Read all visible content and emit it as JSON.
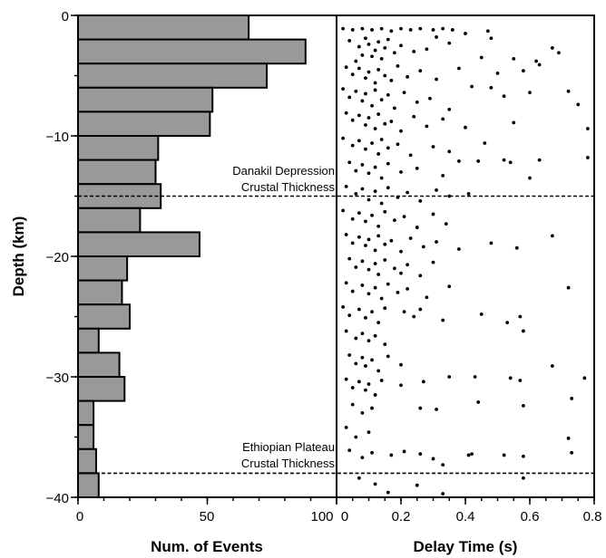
{
  "chart_data": [
    {
      "type": "bar",
      "orientation": "horizontal",
      "xlabel": "Num. of Events",
      "ylabel": "Depth (km)",
      "xlim": [
        0,
        100
      ],
      "ylim": [
        -40,
        0
      ],
      "xticks": [
        "0",
        "50",
        "100"
      ],
      "yticks": [
        "0",
        "−10",
        "−20",
        "−30",
        "−40"
      ],
      "bin_width_km": 2,
      "bins": [
        {
          "top": 0,
          "bottom": -2,
          "value": 66
        },
        {
          "top": -2,
          "bottom": -4,
          "value": 88
        },
        {
          "top": -4,
          "bottom": -6,
          "value": 73
        },
        {
          "top": -6,
          "bottom": -8,
          "value": 52
        },
        {
          "top": -8,
          "bottom": -10,
          "value": 51
        },
        {
          "top": -10,
          "bottom": -12,
          "value": 31
        },
        {
          "top": -12,
          "bottom": -14,
          "value": 30
        },
        {
          "top": -14,
          "bottom": -16,
          "value": 32
        },
        {
          "top": -16,
          "bottom": -18,
          "value": 24
        },
        {
          "top": -18,
          "bottom": -20,
          "value": 47
        },
        {
          "top": -20,
          "bottom": -22,
          "value": 19
        },
        {
          "top": -22,
          "bottom": -24,
          "value": 17
        },
        {
          "top": -24,
          "bottom": -26,
          "value": 20
        },
        {
          "top": -26,
          "bottom": -28,
          "value": 8
        },
        {
          "top": -28,
          "bottom": -30,
          "value": 16
        },
        {
          "top": -30,
          "bottom": -32,
          "value": 18
        },
        {
          "top": -32,
          "bottom": -34,
          "value": 6
        },
        {
          "top": -34,
          "bottom": -36,
          "value": 6
        },
        {
          "top": -36,
          "bottom": -38,
          "value": 7
        },
        {
          "top": -38,
          "bottom": -40,
          "value": 8
        }
      ],
      "bar_color": "#999999"
    },
    {
      "type": "scatter",
      "xlabel": "Delay Time (s)",
      "xlim": [
        0,
        0.8
      ],
      "ylim": [
        -40,
        0
      ],
      "xticks": [
        "0",
        "0.2",
        "0.4",
        "0.6",
        "0.8"
      ],
      "points": [
        [
          0.02,
          -1.1
        ],
        [
          0.05,
          -1.2
        ],
        [
          0.08,
          -1.1
        ],
        [
          0.11,
          -1.2
        ],
        [
          0.14,
          -1.1
        ],
        [
          0.17,
          -1.3
        ],
        [
          0.2,
          -1.1
        ],
        [
          0.23,
          -1.2
        ],
        [
          0.26,
          -1.1
        ],
        [
          0.3,
          -1.2
        ],
        [
          0.33,
          -1.1
        ],
        [
          0.36,
          -1.2
        ],
        [
          0.47,
          -1.3
        ],
        [
          0.48,
          -1.9
        ],
        [
          0.4,
          -1.5
        ],
        [
          0.31,
          -1.8
        ],
        [
          0.04,
          -2.1
        ],
        [
          0.07,
          -2.6
        ],
        [
          0.09,
          -1.9
        ],
        [
          0.1,
          -2.4
        ],
        [
          0.12,
          -2.9
        ],
        [
          0.13,
          -2.2
        ],
        [
          0.15,
          -2.7
        ],
        [
          0.16,
          -2.0
        ],
        [
          0.18,
          -3.1
        ],
        [
          0.11,
          -3.4
        ],
        [
          0.08,
          -3.3
        ],
        [
          0.14,
          -3.6
        ],
        [
          0.06,
          -3.8
        ],
        [
          0.2,
          -2.5
        ],
        [
          0.24,
          -3.0
        ],
        [
          0.28,
          -2.8
        ],
        [
          0.35,
          -2.3
        ],
        [
          0.45,
          -3.5
        ],
        [
          0.55,
          -3.6
        ],
        [
          0.62,
          -3.8
        ],
        [
          0.67,
          -2.7
        ],
        [
          0.69,
          -3.1
        ],
        [
          0.63,
          -4.1
        ],
        [
          0.58,
          -4.6
        ],
        [
          0.5,
          -4.8
        ],
        [
          0.03,
          -4.3
        ],
        [
          0.05,
          -4.9
        ],
        [
          0.07,
          -4.4
        ],
        [
          0.09,
          -5.2
        ],
        [
          0.1,
          -4.7
        ],
        [
          0.12,
          -5.6
        ],
        [
          0.13,
          -4.5
        ],
        [
          0.15,
          -5.0
        ],
        [
          0.17,
          -5.4
        ],
        [
          0.19,
          -4.2
        ],
        [
          0.22,
          -5.1
        ],
        [
          0.26,
          -4.6
        ],
        [
          0.31,
          -5.3
        ],
        [
          0.38,
          -4.4
        ],
        [
          0.42,
          -5.9
        ],
        [
          0.02,
          -6.1
        ],
        [
          0.04,
          -6.8
        ],
        [
          0.06,
          -6.3
        ],
        [
          0.08,
          -7.1
        ],
        [
          0.09,
          -6.5
        ],
        [
          0.11,
          -7.5
        ],
        [
          0.12,
          -6.2
        ],
        [
          0.14,
          -7.0
        ],
        [
          0.16,
          -6.6
        ],
        [
          0.18,
          -7.7
        ],
        [
          0.21,
          -6.4
        ],
        [
          0.25,
          -7.2
        ],
        [
          0.29,
          -6.9
        ],
        [
          0.35,
          -7.8
        ],
        [
          0.48,
          -6.0
        ],
        [
          0.52,
          -6.7
        ],
        [
          0.6,
          -6.4
        ],
        [
          0.72,
          -6.3
        ],
        [
          0.75,
          -7.4
        ],
        [
          0.03,
          -8.1
        ],
        [
          0.05,
          -8.7
        ],
        [
          0.07,
          -8.3
        ],
        [
          0.09,
          -9.1
        ],
        [
          0.1,
          -8.5
        ],
        [
          0.12,
          -9.4
        ],
        [
          0.13,
          -8.2
        ],
        [
          0.15,
          -9.0
        ],
        [
          0.17,
          -8.8
        ],
        [
          0.2,
          -9.6
        ],
        [
          0.24,
          -8.4
        ],
        [
          0.28,
          -9.2
        ],
        [
          0.33,
          -8.6
        ],
        [
          0.4,
          -9.3
        ],
        [
          0.55,
          -8.9
        ],
        [
          0.78,
          -9.4
        ],
        [
          0.02,
          -10.2
        ],
        [
          0.05,
          -10.8
        ],
        [
          0.07,
          -10.4
        ],
        [
          0.09,
          -11.1
        ],
        [
          0.11,
          -10.6
        ],
        [
          0.13,
          -11.5
        ],
        [
          0.14,
          -10.3
        ],
        [
          0.16,
          -11.0
        ],
        [
          0.19,
          -10.7
        ],
        [
          0.23,
          -11.6
        ],
        [
          0.3,
          -10.9
        ],
        [
          0.35,
          -11.3
        ],
        [
          0.46,
          -10.6
        ],
        [
          0.04,
          -12.2
        ],
        [
          0.06,
          -12.9
        ],
        [
          0.08,
          -12.4
        ],
        [
          0.1,
          -13.1
        ],
        [
          0.12,
          -12.6
        ],
        [
          0.14,
          -13.5
        ],
        [
          0.16,
          -12.3
        ],
        [
          0.2,
          -13.0
        ],
        [
          0.25,
          -12.7
        ],
        [
          0.33,
          -13.3
        ],
        [
          0.38,
          -12.1
        ],
        [
          0.44,
          -12.1
        ],
        [
          0.52,
          -12.0
        ],
        [
          0.54,
          -12.2
        ],
        [
          0.63,
          -12.0
        ],
        [
          0.78,
          -11.8
        ],
        [
          0.6,
          -13.5
        ],
        [
          0.03,
          -14.2
        ],
        [
          0.06,
          -14.8
        ],
        [
          0.08,
          -14.4
        ],
        [
          0.1,
          -15.3
        ],
        [
          0.12,
          -14.6
        ],
        [
          0.14,
          -15.6
        ],
        [
          0.16,
          -14.3
        ],
        [
          0.19,
          -15.1
        ],
        [
          0.22,
          -14.7
        ],
        [
          0.26,
          -15.4
        ],
        [
          0.31,
          -14.5
        ],
        [
          0.35,
          -15.0
        ],
        [
          0.41,
          -14.8
        ],
        [
          0.02,
          -16.2
        ],
        [
          0.05,
          -16.9
        ],
        [
          0.07,
          -16.4
        ],
        [
          0.09,
          -17.1
        ],
        [
          0.11,
          -16.6
        ],
        [
          0.13,
          -17.5
        ],
        [
          0.15,
          -16.3
        ],
        [
          0.18,
          -17.0
        ],
        [
          0.21,
          -16.7
        ],
        [
          0.25,
          -17.6
        ],
        [
          0.3,
          -16.5
        ],
        [
          0.34,
          -17.3
        ],
        [
          0.03,
          -18.2
        ],
        [
          0.05,
          -18.9
        ],
        [
          0.07,
          -18.4
        ],
        [
          0.09,
          -19.1
        ],
        [
          0.1,
          -18.6
        ],
        [
          0.12,
          -19.5
        ],
        [
          0.13,
          -18.3
        ],
        [
          0.15,
          -19.0
        ],
        [
          0.17,
          -18.7
        ],
        [
          0.2,
          -19.6
        ],
        [
          0.23,
          -18.5
        ],
        [
          0.27,
          -19.2
        ],
        [
          0.31,
          -18.8
        ],
        [
          0.38,
          -19.4
        ],
        [
          0.48,
          -18.9
        ],
        [
          0.56,
          -19.3
        ],
        [
          0.67,
          -18.3
        ],
        [
          0.04,
          -20.2
        ],
        [
          0.06,
          -20.9
        ],
        [
          0.08,
          -20.4
        ],
        [
          0.1,
          -21.1
        ],
        [
          0.12,
          -20.6
        ],
        [
          0.13,
          -21.5
        ],
        [
          0.15,
          -20.3
        ],
        [
          0.18,
          -21.0
        ],
        [
          0.2,
          -21.4
        ],
        [
          0.22,
          -20.7
        ],
        [
          0.26,
          -21.6
        ],
        [
          0.3,
          -20.5
        ],
        [
          0.03,
          -22.2
        ],
        [
          0.05,
          -22.9
        ],
        [
          0.08,
          -22.4
        ],
        [
          0.1,
          -23.1
        ],
        [
          0.12,
          -22.6
        ],
        [
          0.14,
          -23.5
        ],
        [
          0.16,
          -22.3
        ],
        [
          0.19,
          -23.0
        ],
        [
          0.22,
          -22.7
        ],
        [
          0.28,
          -23.4
        ],
        [
          0.35,
          -22.5
        ],
        [
          0.72,
          -22.6
        ],
        [
          0.02,
          -24.2
        ],
        [
          0.04,
          -24.9
        ],
        [
          0.07,
          -24.4
        ],
        [
          0.09,
          -25.1
        ],
        [
          0.11,
          -24.6
        ],
        [
          0.13,
          -25.5
        ],
        [
          0.15,
          -24.3
        ],
        [
          0.21,
          -24.6
        ],
        [
          0.24,
          -25.0
        ],
        [
          0.26,
          -24.4
        ],
        [
          0.33,
          -25.3
        ],
        [
          0.45,
          -24.8
        ],
        [
          0.53,
          -25.5
        ],
        [
          0.57,
          -25.0
        ],
        [
          0.03,
          -26.2
        ],
        [
          0.06,
          -26.8
        ],
        [
          0.08,
          -26.4
        ],
        [
          0.1,
          -27.0
        ],
        [
          0.12,
          -26.6
        ],
        [
          0.15,
          -27.3
        ],
        [
          0.58,
          -26.2
        ],
        [
          0.04,
          -28.2
        ],
        [
          0.06,
          -28.9
        ],
        [
          0.08,
          -28.4
        ],
        [
          0.09,
          -29.1
        ],
        [
          0.11,
          -28.6
        ],
        [
          0.13,
          -29.5
        ],
        [
          0.16,
          -28.3
        ],
        [
          0.2,
          -29.0
        ],
        [
          0.67,
          -29.1
        ],
        [
          0.03,
          -30.2
        ],
        [
          0.05,
          -30.9
        ],
        [
          0.07,
          -30.4
        ],
        [
          0.09,
          -31.1
        ],
        [
          0.1,
          -30.6
        ],
        [
          0.12,
          -31.5
        ],
        [
          0.14,
          -30.3
        ],
        [
          0.2,
          -30.7
        ],
        [
          0.27,
          -30.4
        ],
        [
          0.35,
          -30.0
        ],
        [
          0.43,
          -30.0
        ],
        [
          0.54,
          -30.1
        ],
        [
          0.57,
          -30.3
        ],
        [
          0.77,
          -30.1
        ],
        [
          0.05,
          -32.3
        ],
        [
          0.08,
          -33.0
        ],
        [
          0.11,
          -32.6
        ],
        [
          0.26,
          -32.6
        ],
        [
          0.31,
          -32.7
        ],
        [
          0.44,
          -32.1
        ],
        [
          0.58,
          -32.4
        ],
        [
          0.73,
          -31.8
        ],
        [
          0.03,
          -34.2
        ],
        [
          0.06,
          -35.0
        ],
        [
          0.1,
          -34.6
        ],
        [
          0.72,
          -35.1
        ],
        [
          0.04,
          -36.1
        ],
        [
          0.08,
          -36.7
        ],
        [
          0.11,
          -36.3
        ],
        [
          0.17,
          -36.5
        ],
        [
          0.21,
          -36.2
        ],
        [
          0.26,
          -36.4
        ],
        [
          0.3,
          -36.8
        ],
        [
          0.41,
          -36.5
        ],
        [
          0.42,
          -36.4
        ],
        [
          0.52,
          -36.5
        ],
        [
          0.58,
          -36.6
        ],
        [
          0.73,
          -36.3
        ],
        [
          0.33,
          -37.3
        ],
        [
          0.07,
          -38.4
        ],
        [
          0.12,
          -38.9
        ],
        [
          0.25,
          -39.0
        ],
        [
          0.33,
          -39.7
        ],
        [
          0.16,
          -39.6
        ],
        [
          0.58,
          -38.4
        ]
      ]
    }
  ],
  "annotations": {
    "danakil_line1": "Danakil Depression",
    "danakil_line2": "Crustal Thickness",
    "danakil_depth": -15,
    "ethiopian_line1": "Ethiopian Plateau",
    "ethiopian_line2": "Crustal Thickness",
    "ethiopian_depth": -38
  }
}
